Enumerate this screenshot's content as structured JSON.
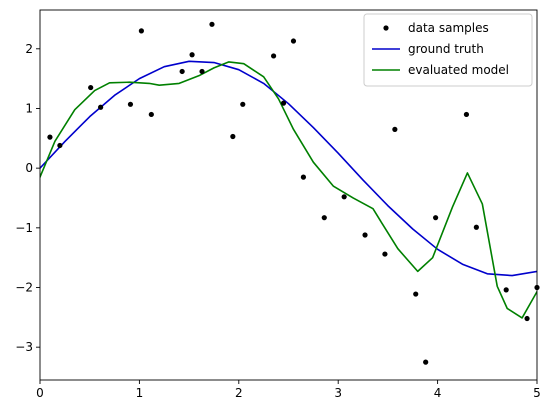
{
  "chart_data": {
    "type": "line",
    "title": "",
    "xlabel": "",
    "ylabel": "",
    "xlim": [
      0,
      5
    ],
    "ylim": [
      -3.55,
      2.65
    ],
    "grid": false,
    "legend_position": "top-right",
    "x_ticks": [
      0,
      1,
      2,
      3,
      4,
      5
    ],
    "x_tick_labels": [
      "0",
      "1",
      "2",
      "3",
      "4",
      "5"
    ],
    "y_ticks": [
      -3,
      -2,
      -1,
      0,
      1,
      2
    ],
    "y_tick_labels": [
      "−3",
      "−2",
      "−1",
      "0",
      "1",
      "2"
    ],
    "series": [
      {
        "name": "data samples",
        "kind": "scatter",
        "color": "#000000",
        "marker": "dot",
        "x": [
          0.1,
          0.2,
          0.51,
          0.61,
          0.91,
          1.02,
          1.12,
          1.43,
          1.53,
          1.63,
          1.73,
          1.94,
          2.04,
          2.35,
          2.45,
          2.55,
          2.65,
          2.86,
          3.06,
          3.27,
          3.47,
          3.57,
          3.78,
          3.88,
          3.98,
          4.29,
          4.39,
          4.69,
          4.9,
          5.0
        ],
        "y": [
          0.52,
          0.38,
          1.35,
          1.02,
          1.07,
          2.3,
          0.9,
          1.62,
          1.9,
          1.62,
          2.41,
          0.53,
          1.07,
          1.88,
          1.09,
          2.13,
          -0.15,
          -0.83,
          -0.48,
          -1.12,
          -1.44,
          0.65,
          -2.11,
          -3.25,
          -0.83,
          0.9,
          -0.99,
          -2.04,
          -2.52,
          -2.0
        ]
      },
      {
        "name": "ground truth",
        "kind": "line",
        "color": "#0000cc",
        "x": [
          0.0,
          0.25,
          0.5,
          0.75,
          1.0,
          1.25,
          1.5,
          1.75,
          2.0,
          2.25,
          2.5,
          2.75,
          3.0,
          3.25,
          3.5,
          3.75,
          4.0,
          4.25,
          4.5,
          4.75,
          5.0
        ],
        "y": [
          0.0,
          0.446,
          0.863,
          1.22,
          1.5,
          1.7,
          1.79,
          1.77,
          1.65,
          1.42,
          1.08,
          0.68,
          0.25,
          -0.2,
          -0.63,
          -1.02,
          -1.36,
          -1.61,
          -1.77,
          -1.8,
          -1.73
        ]
      },
      {
        "name": "evaluated model",
        "kind": "line",
        "color": "#008000",
        "x": [
          0.0,
          0.15,
          0.35,
          0.55,
          0.7,
          0.9,
          1.1,
          1.2,
          1.4,
          1.6,
          1.75,
          1.9,
          2.05,
          2.25,
          2.4,
          2.55,
          2.75,
          2.95,
          3.15,
          3.35,
          3.45,
          3.6,
          3.8,
          3.95,
          4.15,
          4.3,
          4.45,
          4.6,
          4.7,
          4.85,
          5.0
        ],
        "y": [
          -0.15,
          0.45,
          0.98,
          1.3,
          1.43,
          1.44,
          1.42,
          1.39,
          1.42,
          1.55,
          1.68,
          1.78,
          1.75,
          1.53,
          1.16,
          0.65,
          0.1,
          -0.3,
          -0.5,
          -0.68,
          -0.95,
          -1.35,
          -1.73,
          -1.5,
          -0.65,
          -0.08,
          -0.6,
          -1.98,
          -2.35,
          -2.51,
          -2.07
        ]
      }
    ]
  }
}
